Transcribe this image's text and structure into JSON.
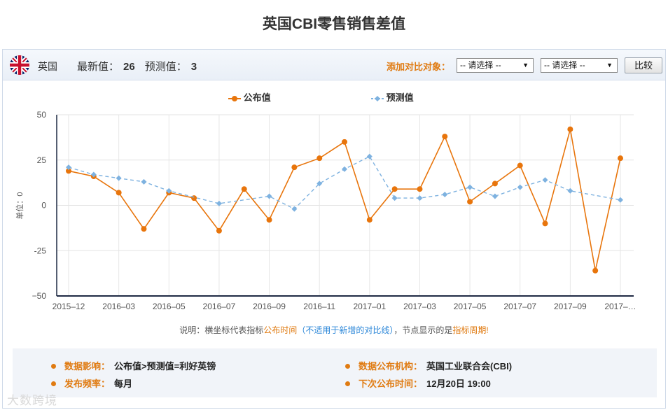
{
  "page": {
    "title": "英国CBI零售销售差值"
  },
  "header": {
    "country": "英国",
    "latest_label": "最新值：",
    "latest_value": "26",
    "forecast_label": "预测值：",
    "forecast_value": "3",
    "compare_label": "添加对比对象：",
    "select1": "-- 请选择 --",
    "select2": "-- 请选择 --",
    "compare_button": "比较"
  },
  "chart_data": {
    "type": "line",
    "ylabel": "单位：0",
    "ylim": [
      -50,
      50
    ],
    "yticks": [
      50,
      25,
      0,
      -25,
      -50
    ],
    "ytick_labels": [
      "50",
      "25",
      "0",
      "-25",
      "−50"
    ],
    "x": [
      "2015-12",
      "2016-01",
      "2016-02",
      "2016-03",
      "2016-04",
      "2016-05",
      "2016-06",
      "2016-07",
      "2016-08",
      "2016-09",
      "2016-10",
      "2016-11",
      "2016-12",
      "2017-01",
      "2017-02",
      "2017-03",
      "2017-04",
      "2017-05",
      "2017-06",
      "2017-07",
      "2017-08",
      "2017-09",
      "2017-10",
      "2017-11"
    ],
    "xtick_labels": [
      "2015–12",
      "",
      "2016–03",
      "",
      "2016–05",
      "",
      "2016–07",
      "",
      "2016–09",
      "",
      "2016–11",
      "",
      "2017–01",
      "",
      "2017–03",
      "",
      "2017–05",
      "",
      "2017–07",
      "",
      "2017–09",
      "",
      "2017–…",
      ""
    ],
    "xtick_label_positions": [
      0.5,
      null,
      2.5,
      null,
      4.5,
      null,
      6.5,
      null,
      8.5,
      null,
      10.5,
      null,
      12.5,
      null,
      14.5,
      null,
      16.5,
      null,
      18.5,
      null,
      20.5,
      null,
      22.5,
      null
    ],
    "grid": true,
    "legend_position": "top-center",
    "series": [
      {
        "name": "公布值",
        "color": "#e8750c",
        "style": "solid",
        "marker": "circle",
        "values": [
          19,
          16,
          7,
          -13,
          7,
          4,
          -14,
          9,
          -8,
          21,
          26,
          35,
          -8,
          9,
          9,
          38,
          2,
          12,
          22,
          -10,
          42,
          -36,
          26,
          null
        ]
      },
      {
        "name": "预测值",
        "color": "#7eb2e0",
        "style": "dashed",
        "marker": "diamond",
        "values": [
          21,
          17,
          15,
          13,
          8,
          null,
          1,
          null,
          5,
          -2,
          12,
          20,
          27,
          4,
          4,
          6,
          10,
          5,
          10,
          14,
          8,
          null,
          3,
          null
        ]
      }
    ]
  },
  "note": {
    "prefix": "说明：横坐标代表指标",
    "part1": "公布时间",
    "part2": "（不适用于新增的对比线）",
    "mid": "，节点显示的是",
    "part3": "指标周期",
    "suffix": "!"
  },
  "info": {
    "impact_label": "数据影响：",
    "impact_value": "公布值>预测值=利好英镑",
    "agency_label": "数据公布机构：",
    "agency_value": "英国工业联合会(CBI)",
    "freq_label": "发布频率：",
    "freq_value": "每月",
    "next_label": "下次公布时间：",
    "next_value": "12月20日 19:00"
  },
  "watermark": "大数跨境",
  "colors": {
    "accent": "#e07b12",
    "published": "#e8750c",
    "forecast": "#7eb2e0"
  }
}
